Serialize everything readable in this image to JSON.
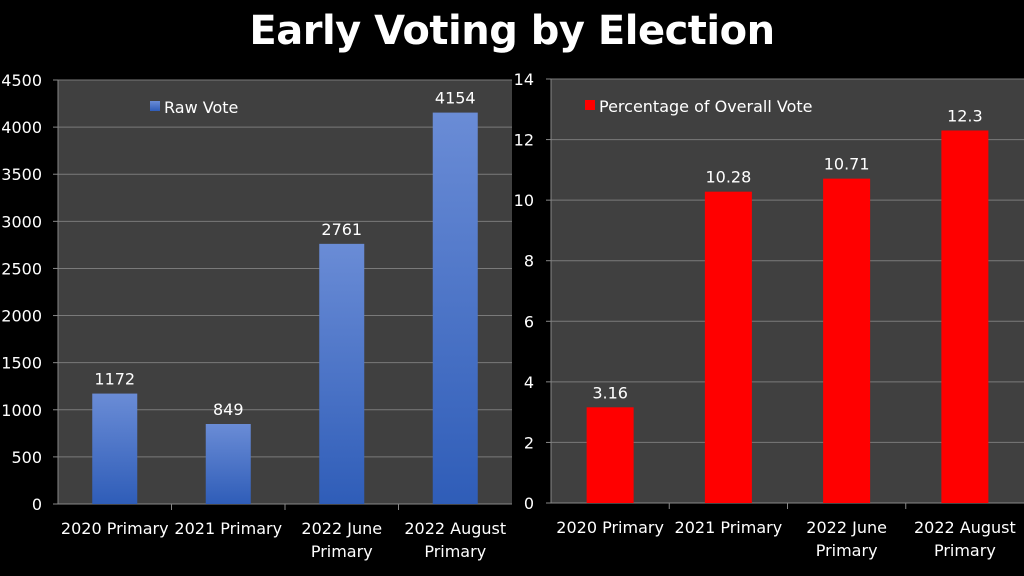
{
  "title": "Early Voting by Election",
  "chart_data": [
    {
      "type": "bar",
      "categories": [
        "2020 Primary",
        "2021 Primary",
        "2022 June|Primary",
        "2022 August|Primary"
      ],
      "series": [
        {
          "name": "Raw Vote",
          "values": [
            1172,
            849,
            2761,
            4154
          ],
          "color": "#4472C4"
        }
      ],
      "data_labels": [
        "1172",
        "849",
        "2761",
        "4154"
      ],
      "ylim": [
        0,
        4500
      ],
      "yticks": [
        0,
        500,
        1000,
        1500,
        2000,
        2500,
        3000,
        3500,
        4000,
        4500
      ],
      "grid": true,
      "legend": "top-left",
      "xlabel": "",
      "ylabel": ""
    },
    {
      "type": "bar",
      "categories": [
        "2020 Primary",
        "2021 Primary",
        "2022 June|Primary",
        "2022 August|Primary"
      ],
      "series": [
        {
          "name": "Percentage of Overall Vote",
          "values": [
            3.16,
            10.28,
            10.71,
            12.3
          ],
          "color": "#FF0000"
        }
      ],
      "data_labels": [
        "3.16",
        "10.28",
        "10.71",
        "12.3"
      ],
      "ylim": [
        0,
        14
      ],
      "yticks": [
        0,
        2,
        4,
        6,
        8,
        10,
        12,
        14
      ],
      "grid": true,
      "legend": "top-left",
      "xlabel": "",
      "ylabel": ""
    }
  ]
}
